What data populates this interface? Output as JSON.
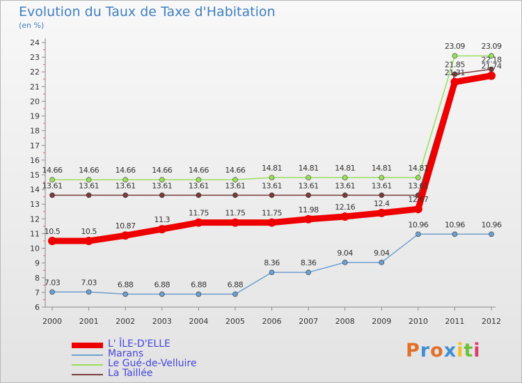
{
  "chart_data": {
    "type": "line",
    "title": "Evolution du Taux de Taxe d'Habitation",
    "subtitle": "(en %)",
    "x": [
      "2000",
      "2001",
      "2002",
      "2003",
      "2004",
      "2005",
      "2006",
      "2007",
      "2008",
      "2009",
      "2010",
      "2011",
      "2012"
    ],
    "ylim": [
      6,
      24
    ],
    "yticks": [
      6,
      7,
      8,
      9,
      10,
      11,
      12,
      13,
      14,
      15,
      16,
      17,
      18,
      19,
      20,
      21,
      22,
      23,
      24
    ],
    "grid": false,
    "series": [
      {
        "name": "L' ÎLE-D'ELLE",
        "color": "#ee0000",
        "values": [
          10.5,
          10.5,
          10.87,
          11.3,
          11.75,
          11.75,
          11.75,
          11.98,
          12.16,
          12.4,
          12.67,
          21.31,
          21.74
        ],
        "labels": [
          "10.5",
          "10.5",
          "10.87",
          "11.3",
          "11.75",
          "11.75",
          "11.75",
          "11.98",
          "12.16",
          "12.4",
          "12.67",
          "21.31",
          "21.74"
        ]
      },
      {
        "name": "Marans",
        "color": "#6d9fcf",
        "values": [
          7.03,
          7.03,
          6.88,
          6.88,
          6.88,
          6.88,
          8.36,
          8.36,
          9.04,
          9.04,
          10.96,
          10.96,
          10.96
        ],
        "labels": [
          "7.03",
          "7.03",
          "6.88",
          "6.88",
          "6.88",
          "6.88",
          "8.36",
          "8.36",
          "9.04",
          "9.04",
          "10.96",
          "10.96",
          "10.96"
        ]
      },
      {
        "name": "Le Gué-de-Velluire",
        "color": "#9adf5a",
        "values": [
          14.66,
          14.66,
          14.66,
          14.66,
          14.66,
          14.66,
          14.81,
          14.81,
          14.81,
          14.81,
          14.81,
          23.09,
          23.09
        ],
        "labels": [
          "14.66",
          "14.66",
          "14.66",
          "14.66",
          "14.66",
          "14.66",
          "14.81",
          "14.81",
          "14.81",
          "14.81",
          "14.81",
          "23.09",
          "23.09"
        ]
      },
      {
        "name": "La Taillée",
        "color": "#7a3b3b",
        "values": [
          13.61,
          13.61,
          13.61,
          13.61,
          13.61,
          13.61,
          13.61,
          13.61,
          13.61,
          13.61,
          13.61,
          21.85,
          22.18
        ],
        "labels": [
          "13.61",
          "13.61",
          "13.61",
          "13.61",
          "13.61",
          "13.61",
          "13.61",
          "13.61",
          "13.61",
          "13.61",
          "13.61",
          "21.85",
          "22.18"
        ]
      }
    ],
    "legend_position": "bottom-left"
  },
  "brand": {
    "letters": [
      "P",
      "r",
      "o",
      "x",
      "i",
      "t",
      "i"
    ],
    "colors": [
      "#e0702a",
      "#3e8fd6",
      "#e0702a",
      "#3e8fd6",
      "#f0c020",
      "#6cbf3a",
      "#e03a6a"
    ]
  }
}
